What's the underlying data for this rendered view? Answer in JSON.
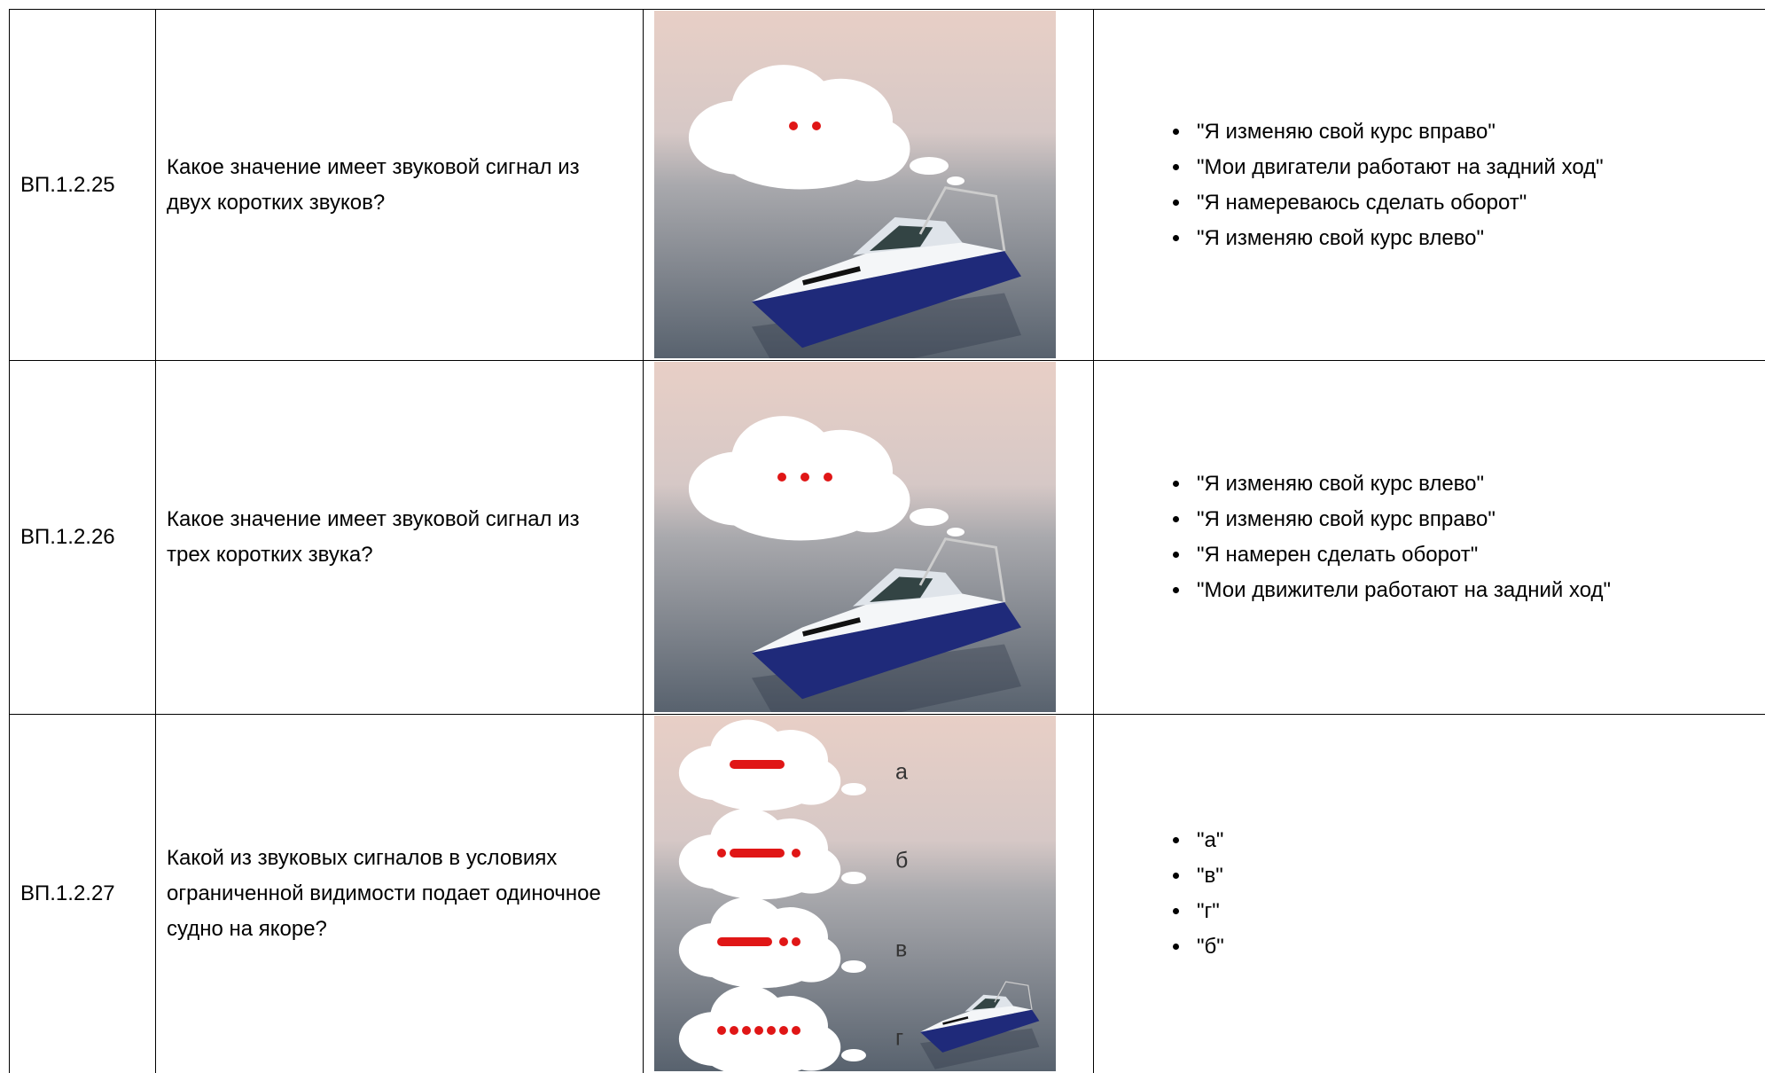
{
  "table": {
    "rows": [
      {
        "id": "ВП.1.2.25",
        "question": "Какое значение имеет звуковой сигнал из двух коротких звуков?",
        "answers": [
          "\"Я изменяю свой курс вправо\"",
          "\"Мои двигатели работают на задний ход\"",
          "\"Я намереваюсь сделать оборот\"",
          "\"Я изменяю свой курс влево\""
        ]
      },
      {
        "id": "ВП.1.2.26",
        "question": "Какое значение имеет звуковой сигнал из трех коротких звука?",
        "answers": [
          "\"Я изменяю свой курс влево\"",
          "\"Я изменяю свой курс вправо\"",
          "\"Я намерен сделать оборот\"",
          "\"Мои движители работают на задний ход\""
        ]
      },
      {
        "id": "ВП.1.2.27",
        "question": "Какой из звуковых сигналов в условиях ограниченной видимости подает одиночное судно на якоре?",
        "signal_labels": [
          "а",
          "б",
          "в",
          "г"
        ],
        "answers": [
          "\"а\"",
          "\"в\"",
          "\"г\"",
          "\"б\""
        ]
      }
    ]
  }
}
